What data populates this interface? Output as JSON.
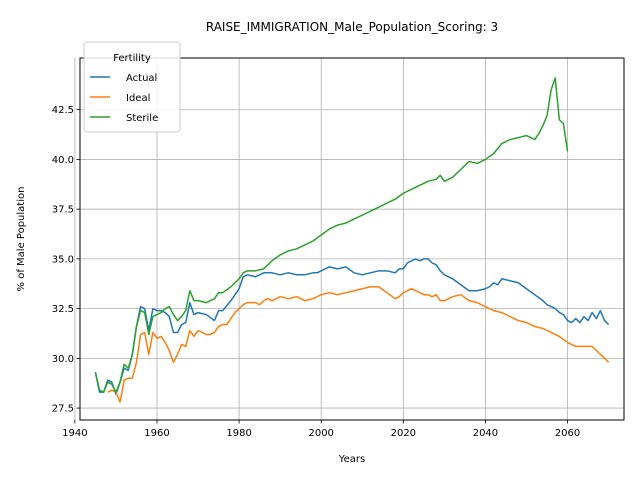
{
  "chart_data": {
    "type": "line",
    "title": "RAISE_IMMIGRATION_Male_Population_Scoring: 3",
    "xlabel": "Years",
    "ylabel": "% of Male Population",
    "xlim": [
      1941.25,
      2073.75
    ],
    "ylim": [
      26.9,
      45.1
    ],
    "xticks": [
      1940,
      1960,
      1980,
      2000,
      2020,
      2040,
      2060
    ],
    "yticks": [
      27.5,
      30.0,
      32.5,
      35.0,
      37.5,
      40.0,
      42.5
    ],
    "grid": true,
    "legend": {
      "title": "Fertility",
      "position": "top-left"
    },
    "series": [
      {
        "name": "Actual",
        "color": "#1f77b4",
        "x": [
          1945,
          1946,
          1947,
          1948,
          1949,
          1950,
          1951,
          1952,
          1953,
          1954,
          1955,
          1956,
          1957,
          1958,
          1959,
          1960,
          1961,
          1962,
          1963,
          1964,
          1965,
          1966,
          1967,
          1968,
          1969,
          1970,
          1972,
          1974,
          1975,
          1976,
          1978,
          1980,
          1981,
          1982,
          1984,
          1985,
          1986,
          1987,
          1988,
          1990,
          1992,
          1994,
          1996,
          1998,
          1999,
          2000,
          2002,
          2004,
          2006,
          2008,
          2010,
          2012,
          2014,
          2016,
          2018,
          2019,
          2020,
          2021,
          2022,
          2023,
          2024,
          2025,
          2026,
          2027,
          2028,
          2029,
          2030,
          2032,
          2034,
          2036,
          2038,
          2040,
          2041,
          2042,
          2043,
          2044,
          2046,
          2048,
          2050,
          2052,
          2054,
          2055,
          2056,
          2057,
          2058,
          2059,
          2060,
          2061,
          2062,
          2063,
          2064,
          2065,
          2066,
          2067,
          2068,
          2069,
          2070
        ],
        "y": [
          29.3,
          28.3,
          28.3,
          28.9,
          28.8,
          28.2,
          28.8,
          29.5,
          29.4,
          30.2,
          31.6,
          32.6,
          32.5,
          31.4,
          32.5,
          32.4,
          32.4,
          32.3,
          32.1,
          31.3,
          31.3,
          31.7,
          31.8,
          32.8,
          32.2,
          32.3,
          32.2,
          31.9,
          32.4,
          32.4,
          32.9,
          33.5,
          34.1,
          34.2,
          34.1,
          34.2,
          34.3,
          34.3,
          34.3,
          34.2,
          34.3,
          34.2,
          34.2,
          34.3,
          34.3,
          34.4,
          34.6,
          34.5,
          34.6,
          34.3,
          34.2,
          34.3,
          34.4,
          34.4,
          34.3,
          34.5,
          34.5,
          34.8,
          34.9,
          35.0,
          34.9,
          35.0,
          35.0,
          34.8,
          34.7,
          34.4,
          34.2,
          34.0,
          33.7,
          33.4,
          33.4,
          33.5,
          33.6,
          33.8,
          33.7,
          34.0,
          33.9,
          33.8,
          33.5,
          33.2,
          32.9,
          32.7,
          32.6,
          32.5,
          32.3,
          32.2,
          31.9,
          31.8,
          32.0,
          31.8,
          32.1,
          31.9,
          32.3,
          32.0,
          32.4,
          31.9,
          31.7
        ]
      },
      {
        "name": "Ideal",
        "color": "#ff7f0e",
        "x": [
          1948,
          1949,
          1950,
          1951,
          1952,
          1953,
          1954,
          1955,
          1956,
          1957,
          1958,
          1959,
          1960,
          1961,
          1962,
          1963,
          1964,
          1965,
          1966,
          1967,
          1968,
          1969,
          1970,
          1972,
          1973,
          1974,
          1975,
          1976,
          1977,
          1978,
          1979,
          1980,
          1981,
          1982,
          1984,
          1985,
          1986,
          1987,
          1988,
          1990,
          1992,
          1994,
          1996,
          1998,
          1999,
          2000,
          2002,
          2004,
          2006,
          2008,
          2010,
          2012,
          2014,
          2016,
          2018,
          2019,
          2020,
          2021,
          2022,
          2023,
          2024,
          2025,
          2026,
          2027,
          2028,
          2029,
          2030,
          2032,
          2034,
          2036,
          2038,
          2040,
          2042,
          2044,
          2046,
          2048,
          2050,
          2052,
          2054,
          2056,
          2058,
          2060,
          2062,
          2064,
          2066,
          2067,
          2068,
          2069,
          2070
        ],
        "y": [
          28.3,
          28.4,
          28.3,
          27.8,
          28.9,
          29.0,
          29.0,
          29.8,
          31.2,
          31.3,
          30.2,
          31.3,
          31.0,
          31.1,
          30.8,
          30.4,
          29.8,
          30.2,
          30.7,
          30.6,
          31.4,
          31.1,
          31.4,
          31.2,
          31.2,
          31.3,
          31.6,
          31.7,
          31.7,
          32.0,
          32.3,
          32.5,
          32.7,
          32.8,
          32.8,
          32.7,
          32.9,
          33.0,
          32.9,
          33.1,
          33.0,
          33.1,
          32.9,
          33.0,
          33.1,
          33.2,
          33.3,
          33.2,
          33.3,
          33.4,
          33.5,
          33.6,
          33.6,
          33.3,
          33.0,
          33.1,
          33.3,
          33.4,
          33.5,
          33.4,
          33.3,
          33.2,
          33.2,
          33.1,
          33.2,
          32.9,
          32.9,
          33.1,
          33.2,
          32.9,
          32.8,
          32.6,
          32.4,
          32.3,
          32.1,
          31.9,
          31.8,
          31.6,
          31.5,
          31.3,
          31.1,
          30.8,
          30.6,
          30.6,
          30.6,
          30.4,
          30.2,
          30.0,
          29.8
        ]
      },
      {
        "name": "Sterile",
        "color": "#2ca02c",
        "x": [
          1945,
          1946,
          1947,
          1948,
          1949,
          1950,
          1951,
          1952,
          1953,
          1954,
          1955,
          1956,
          1957,
          1958,
          1959,
          1960,
          1961,
          1962,
          1963,
          1964,
          1965,
          1966,
          1967,
          1968,
          1969,
          1970,
          1972,
          1974,
          1975,
          1976,
          1978,
          1980,
          1981,
          1982,
          1984,
          1986,
          1988,
          1990,
          1992,
          1994,
          1996,
          1998,
          2000,
          2002,
          2004,
          2006,
          2008,
          2010,
          2012,
          2014,
          2016,
          2018,
          2020,
          2022,
          2024,
          2026,
          2028,
          2029,
          2030,
          2032,
          2034,
          2036,
          2038,
          2040,
          2042,
          2044,
          2046,
          2048,
          2050,
          2052,
          2053,
          2054,
          2055,
          2056,
          2057,
          2058,
          2059,
          2060
        ],
        "y": [
          29.3,
          28.4,
          28.3,
          28.8,
          28.7,
          28.3,
          28.8,
          29.7,
          29.5,
          30.2,
          31.6,
          32.4,
          32.3,
          31.2,
          32.1,
          32.2,
          32.3,
          32.5,
          32.6,
          32.2,
          31.9,
          32.1,
          32.4,
          33.4,
          32.9,
          32.9,
          32.8,
          33.0,
          33.3,
          33.3,
          33.6,
          34.0,
          34.3,
          34.4,
          34.4,
          34.5,
          34.9,
          35.2,
          35.4,
          35.5,
          35.7,
          35.9,
          36.2,
          36.5,
          36.7,
          36.8,
          37.0,
          37.2,
          37.4,
          37.6,
          37.8,
          38.0,
          38.3,
          38.5,
          38.7,
          38.9,
          39.0,
          39.2,
          38.9,
          39.1,
          39.5,
          39.9,
          39.8,
          40.0,
          40.3,
          40.8,
          41.0,
          41.1,
          41.2,
          41.0,
          41.3,
          41.7,
          42.2,
          43.5,
          44.1,
          42.0,
          41.8,
          40.4
        ]
      }
    ]
  }
}
